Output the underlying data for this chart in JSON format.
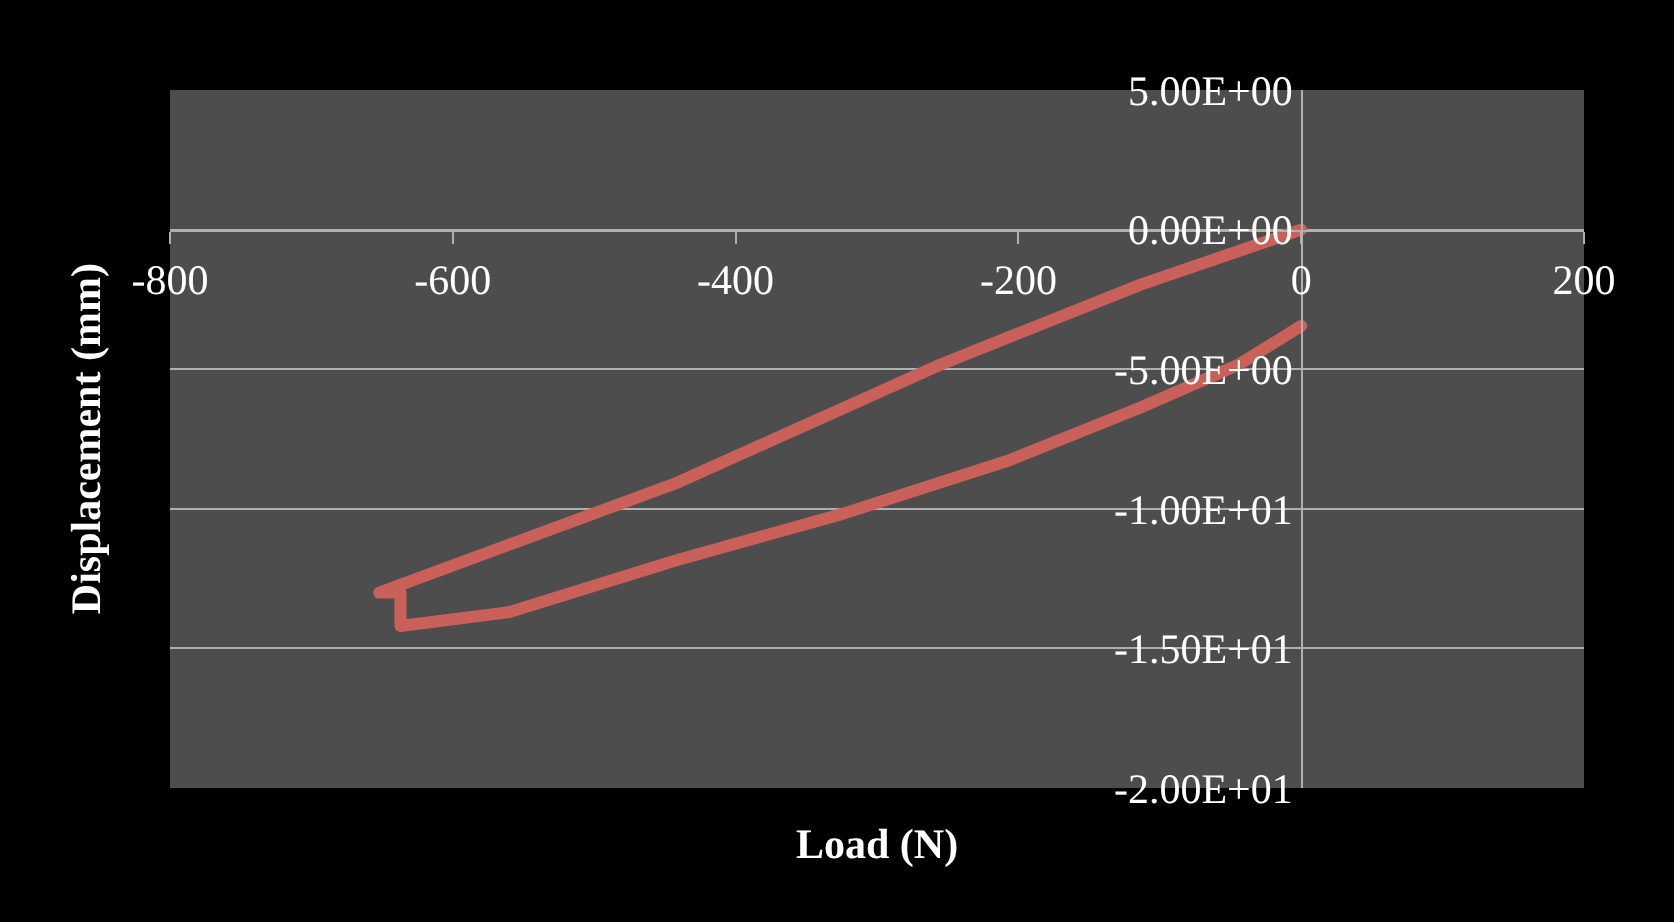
{
  "chart_data": {
    "type": "line",
    "xlabel": "Load (N)",
    "ylabel": "Displacement (mm)",
    "x": [
      0,
      -114,
      -255,
      -443,
      -652,
      -637,
      -637,
      -560,
      -443,
      -325,
      -208,
      -114,
      -44,
      0
    ],
    "series": [
      {
        "color": "#c9605a",
        "values": [
          0,
          -1.98,
          -4.83,
          -9.1,
          -13.0,
          -13.0,
          -14.2,
          -13.7,
          -11.86,
          -10.19,
          -8.29,
          -6.38,
          -4.83,
          -3.45
        ]
      }
    ],
    "xlim": [
      -800,
      200
    ],
    "xticks": [
      -800,
      -600,
      -400,
      -200,
      0,
      200
    ],
    "ylim": [
      -20,
      5
    ],
    "yticks": [
      {
        "value": 5,
        "label": "5.00E+00"
      },
      {
        "value": 0,
        "label": "0.00E+00"
      },
      {
        "value": -5,
        "label": "-5.00E+00"
      },
      {
        "value": -10,
        "label": "-1.00E+01"
      },
      {
        "value": -15,
        "label": "-1.50E+01"
      },
      {
        "value": -20,
        "label": "-2.00E+01"
      }
    ],
    "grid": "y",
    "marker": "none",
    "line_style": "solid"
  }
}
